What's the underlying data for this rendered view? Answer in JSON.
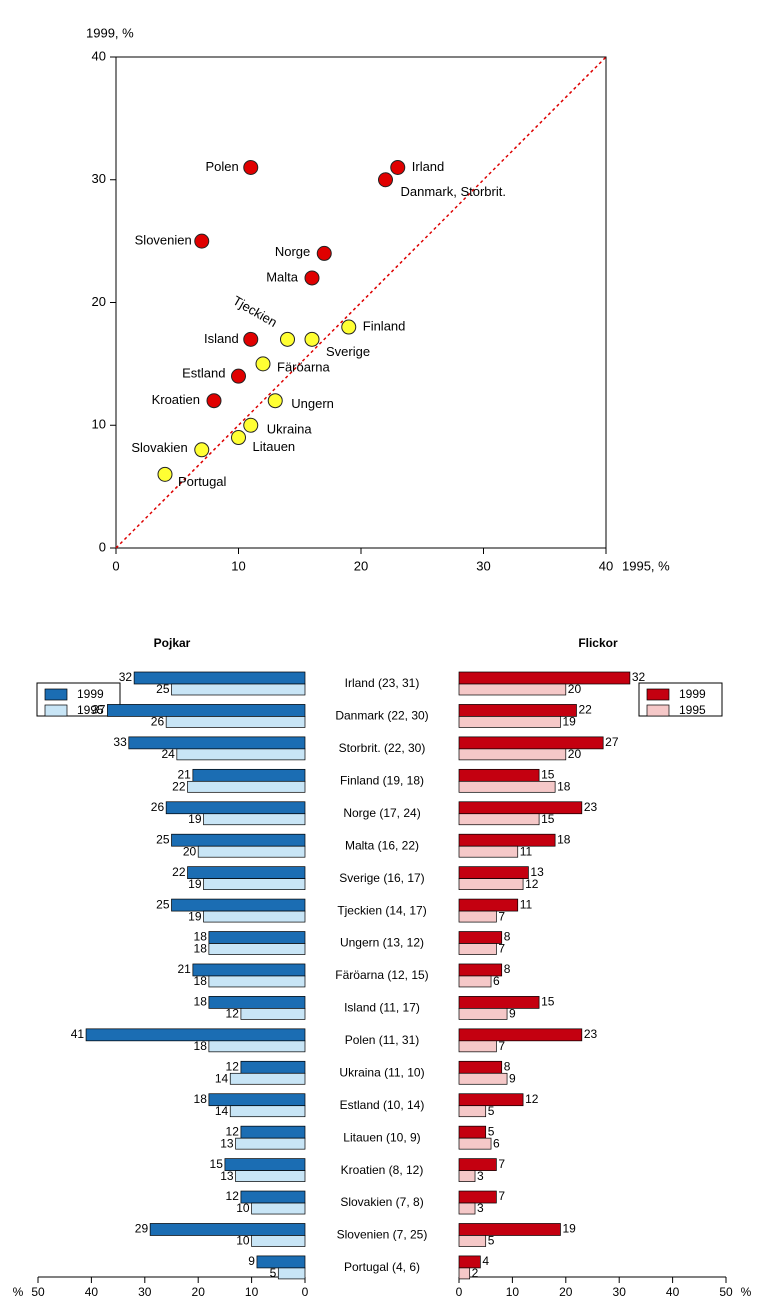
{
  "chart_data": [
    {
      "type": "scatter",
      "xlabel": "1995, %",
      "ylabel": "1999, %",
      "labels": [
        "Polen",
        "Irland",
        "Danmark, Storbrit.",
        "Slovenien",
        "Norge",
        "Malta",
        "Finland",
        "Tjeckien",
        "Sverige",
        "Island",
        "Färöarna",
        "Estland",
        "Kroatien",
        "Ungern",
        "Ukraina",
        "Litauen",
        "Slovakien",
        "Portugal"
      ],
      "x": [
        11,
        23,
        22,
        7,
        17,
        16,
        19,
        14,
        16,
        11,
        12,
        10,
        8,
        13,
        11,
        10,
        7,
        4
      ],
      "y": [
        31,
        31,
        30,
        25,
        24,
        22,
        18,
        17,
        17,
        17,
        15,
        14,
        12,
        12,
        10,
        9,
        8,
        6
      ],
      "colors": [
        "#e00000",
        "#e00000",
        "#e00000",
        "#e00000",
        "#e00000",
        "#e00000",
        "#ffff33",
        "#ffff33",
        "#ffff33",
        "#e00000",
        "#ffff33",
        "#e00000",
        "#e00000",
        "#ffff33",
        "#ffff33",
        "#ffff33",
        "#ffff33",
        "#ffff33"
      ],
      "xlim": [
        0,
        40
      ],
      "ylim": [
        0,
        40
      ],
      "xticks": [
        0,
        10,
        20,
        30,
        40
      ],
      "yticks": [
        0,
        10,
        20,
        30,
        40
      ],
      "diagonal": true,
      "diagonal_color": "#dd0000"
    },
    {
      "type": "butterfly",
      "xlabel": "%",
      "categories": [
        "Irland (23, 31)",
        "Danmark (22, 30)",
        "Storbrit. (22, 30)",
        "Finland (19, 18)",
        "Norge (17, 24)",
        "Malta (16, 22)",
        "Sverige (16, 17)",
        "Tjeckien (14, 17)",
        "Ungern (13, 12)",
        "Färöarna (12, 15)",
        "Island (11, 17)",
        "Polen (11, 31)",
        "Ukraina (11, 10)",
        "Estland (10, 14)",
        "Litauen (10, 9)",
        "Kroatien (8, 12)",
        "Slovakien (7, 8)",
        "Slovenien (7, 25)",
        "Portugal (4, 6)"
      ],
      "xlim": [
        0,
        50
      ],
      "xticks": [
        0,
        10,
        20,
        30,
        40,
        50
      ],
      "panels": [
        {
          "title": "Pojkar",
          "series": [
            {
              "name": "1999",
              "color": "#1b6db3",
              "values": [
                32,
                37,
                33,
                21,
                26,
                25,
                22,
                25,
                18,
                21,
                18,
                41,
                12,
                18,
                12,
                15,
                12,
                29,
                9
              ]
            },
            {
              "name": "1995",
              "color": "#c8e5f6",
              "values": [
                25,
                26,
                24,
                22,
                19,
                20,
                19,
                19,
                18,
                18,
                12,
                18,
                14,
                14,
                13,
                13,
                10,
                10,
                5
              ]
            }
          ]
        },
        {
          "title": "Flickor",
          "series": [
            {
              "name": "1999",
              "color": "#c40010",
              "values": [
                32,
                22,
                27,
                15,
                23,
                18,
                13,
                11,
                8,
                8,
                15,
                23,
                8,
                12,
                5,
                7,
                7,
                19,
                4
              ]
            },
            {
              "name": "1995",
              "color": "#f5c8c8",
              "values": [
                20,
                19,
                20,
                18,
                15,
                11,
                12,
                7,
                7,
                6,
                9,
                7,
                9,
                5,
                6,
                3,
                3,
                5,
                2
              ]
            }
          ]
        }
      ]
    }
  ]
}
